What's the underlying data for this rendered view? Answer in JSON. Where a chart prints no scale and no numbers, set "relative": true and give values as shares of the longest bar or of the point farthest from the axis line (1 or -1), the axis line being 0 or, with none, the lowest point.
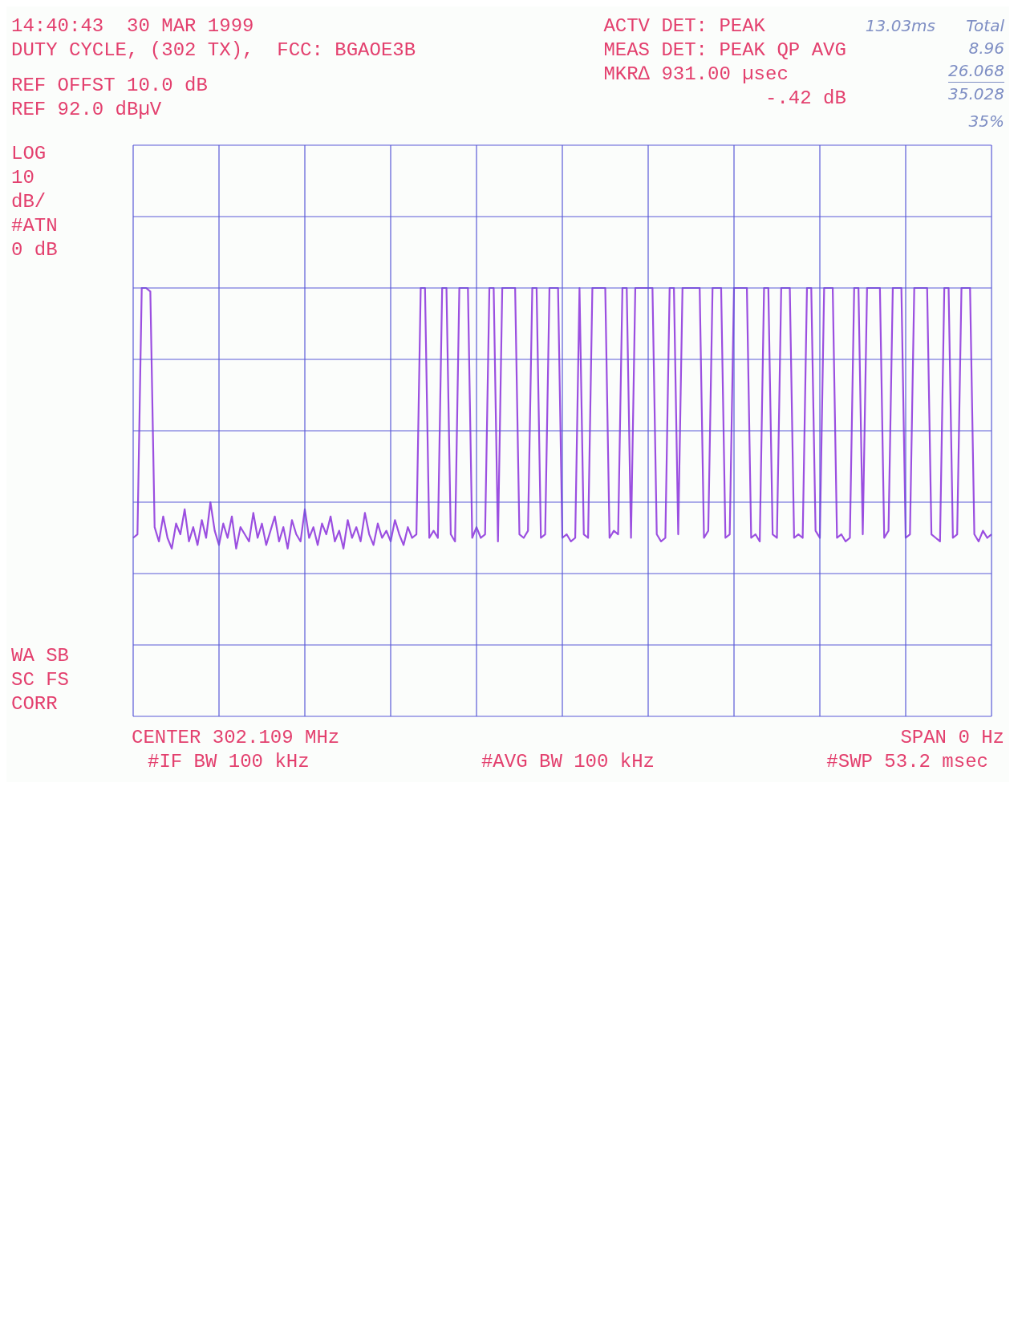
{
  "chart_data": {
    "type": "line",
    "title": "14:40:43  30 MAR 1999",
    "subtitle": "DUTY CYCLE, (302 TX),  FCC: BGAOE3B",
    "relative": true,
    "grid": true,
    "annotations": [
      "ACTV DET: PEAK",
      "MEAS DET: PEAK QP AVG",
      "MKR∆ 931.00 µsec",
      "-.42 dB",
      "REF OFFST 10.0 dB",
      "REF 92.0 dBµV",
      "LOG",
      "10",
      "dB/",
      "#ATN",
      "0 dB",
      "WA SB",
      "SC FS",
      "CORR",
      "CENTER 302.109 MHz",
      "SPAN 0 Hz",
      "#IF BW 100 kHz",
      "#AVG BW 100 kHz",
      "#SWP 53.2 msec",
      "13.03ms",
      "Total",
      "8.96",
      "26.068",
      "35.028",
      "35%"
    ],
    "categories": [
      null,
      null,
      null,
      null,
      null,
      null,
      null,
      null,
      null,
      null,
      null,
      null,
      null,
      null,
      null,
      null,
      null,
      null,
      null,
      null,
      null,
      null,
      null,
      null,
      null,
      null,
      null,
      null,
      null,
      null,
      null,
      null,
      null,
      null,
      null,
      null,
      null,
      null,
      null,
      null,
      null,
      null,
      null,
      null,
      null,
      null,
      null,
      null,
      null,
      null,
      null,
      null,
      null,
      null,
      null,
      null,
      null,
      null,
      null,
      null,
      null,
      null,
      null,
      null,
      null,
      null,
      null,
      null,
      null,
      null,
      null,
      null,
      null,
      null,
      null,
      null,
      null,
      null,
      null,
      null,
      null,
      null,
      null,
      null,
      null,
      null,
      null,
      null,
      null,
      null,
      null,
      null,
      null,
      null,
      null,
      null,
      null,
      null,
      null,
      null,
      null,
      null,
      null,
      null,
      null,
      null,
      null,
      null,
      null,
      null,
      null,
      null,
      null,
      null,
      null,
      null,
      null,
      null,
      null,
      null,
      null,
      null,
      null,
      null,
      null,
      null,
      null,
      null,
      null,
      null,
      null,
      null,
      null,
      null,
      null,
      null,
      null,
      null,
      null,
      null,
      null,
      null,
      null,
      null,
      null,
      null,
      null,
      null,
      null,
      null,
      null,
      null,
      null,
      null,
      null,
      null,
      null,
      null,
      null,
      null,
      null,
      null,
      null,
      null,
      null,
      null,
      null,
      null,
      null,
      null,
      null,
      null,
      null,
      null,
      null,
      null,
      null,
      null,
      null,
      null,
      null,
      null,
      null,
      null,
      null,
      null,
      null,
      null,
      null,
      null,
      null,
      null,
      null,
      null,
      null,
      null,
      null,
      null,
      null,
      null,
      null
    ],
    "series": [
      {
        "color": "#9b4fe0",
        "values": [
          0.3,
          0.31,
          1,
          1,
          0.99,
          0.33,
          0.29,
          0.36,
          0.3,
          0.27,
          0.34,
          0.31,
          0.38,
          0.29,
          0.33,
          0.28,
          0.35,
          0.3,
          0.4,
          0.32,
          0.28,
          0.34,
          0.3,
          0.36,
          0.27,
          0.33,
          0.31,
          0.29,
          0.37,
          0.3,
          0.34,
          0.28,
          0.32,
          0.36,
          0.29,
          0.33,
          0.27,
          0.35,
          0.31,
          0.29,
          0.38,
          0.3,
          0.33,
          0.28,
          0.34,
          0.31,
          0.36,
          0.29,
          0.32,
          0.27,
          0.35,
          0.3,
          0.33,
          0.29,
          0.37,
          0.31,
          0.28,
          0.34,
          0.3,
          0.32,
          0.29,
          0.35,
          0.31,
          0.28,
          0.33,
          0.3,
          0.31,
          1,
          1,
          0.3,
          0.32,
          0.3,
          1,
          1,
          0.31,
          0.29,
          1,
          1,
          1,
          0.3,
          0.33,
          0.3,
          0.31,
          1,
          1,
          0.29,
          1,
          1,
          1,
          1,
          0.31,
          0.3,
          0.32,
          1,
          1,
          0.3,
          0.31,
          1,
          1,
          1,
          0.3,
          0.31,
          0.29,
          0.3,
          1,
          0.31,
          0.3,
          1,
          1,
          1,
          1,
          0.3,
          0.32,
          0.31,
          1,
          1,
          0.3,
          1,
          1,
          1,
          1,
          1,
          0.31,
          0.29,
          0.3,
          1,
          1,
          0.31,
          1,
          1,
          1,
          1,
          1,
          0.3,
          0.32,
          1,
          1,
          1,
          0.3,
          0.31,
          1,
          1,
          1,
          1,
          0.3,
          0.31,
          0.29,
          1,
          1,
          0.31,
          0.3,
          1,
          1,
          1,
          0.3,
          0.31,
          0.3,
          1,
          1,
          0.32,
          0.3,
          1,
          1,
          1,
          0.3,
          0.31,
          0.29,
          0.3,
          1,
          1,
          0.31,
          1,
          1,
          1,
          1,
          0.3,
          0.32,
          1,
          1,
          1,
          0.3,
          0.31,
          1,
          1,
          1,
          1,
          0.31,
          0.3,
          0.29,
          1,
          1,
          0.3,
          0.31,
          1,
          1,
          1,
          0.31,
          0.29,
          0.32,
          0.3,
          0.31
        ]
      }
    ]
  }
}
